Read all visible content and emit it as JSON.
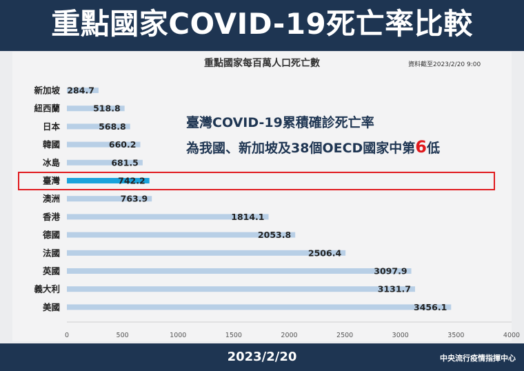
{
  "title": "重點國家COVID-19死亡率比較",
  "source_note": "資料截至2023/2/20 9:00",
  "annotation": {
    "line1": "臺灣COVID-19累積確診死亡率",
    "line2_prefix": "為我國、新加坡及38個OECD國家中第",
    "rank": "6",
    "line2_suffix": "低"
  },
  "footer": {
    "date": "2023/2/20",
    "org": "中央流行疫情指揮中心"
  },
  "colors": {
    "header_bg": "#1e3552",
    "bar": "#b8cfe6",
    "bar_highlight": "#1aa3dc",
    "highlight_box": "#e0191d"
  },
  "chart_data": {
    "type": "bar",
    "orientation": "horizontal",
    "title": "重點國家每百萬人口死亡數",
    "categories": [
      "新加坡",
      "紐西蘭",
      "日本",
      "韓國",
      "冰島",
      "臺灣",
      "澳洲",
      "香港",
      "德國",
      "法國",
      "英國",
      "義大利",
      "美國"
    ],
    "values": [
      284.7,
      518.8,
      568.8,
      660.2,
      681.5,
      742.2,
      763.9,
      1814.1,
      2053.8,
      2506.4,
      3097.9,
      3131.7,
      3456.1
    ],
    "value_labels": [
      "284.7",
      "518.8",
      "568.8",
      "660.2",
      "681.5",
      "742.2",
      "763.9",
      "1814.1",
      "2053.8",
      "2506.4",
      "3097.9",
      "3131.7",
      "3456.1"
    ],
    "highlight": "臺灣",
    "xlim": [
      0,
      4000
    ],
    "xticks": [
      "0",
      "500",
      "1000",
      "1500",
      "2000",
      "2500",
      "3000",
      "3500",
      "4000"
    ],
    "grid": false
  }
}
